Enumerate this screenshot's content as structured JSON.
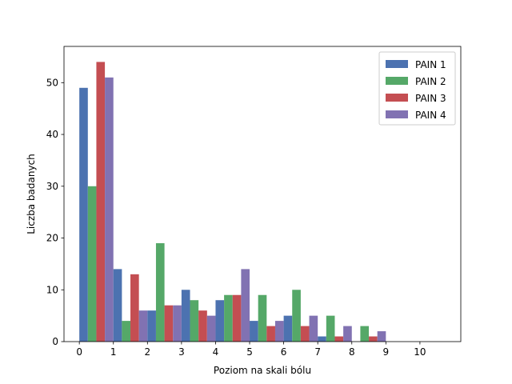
{
  "chart_data": {
    "type": "bar",
    "title": "",
    "xlabel": "Poziom na skali bólu",
    "ylabel": "Liczba badanych",
    "x_ticks": [
      0,
      1,
      2,
      3,
      4,
      5,
      6,
      7,
      8,
      9,
      10
    ],
    "xlim": [
      -0.45,
      11.2
    ],
    "ylim": [
      0,
      57
    ],
    "y_ticks": [
      0,
      10,
      20,
      30,
      40,
      50
    ],
    "grid": false,
    "legend_position": "top-right",
    "bins": [
      {
        "start": 0.0,
        "end": 1.0
      },
      {
        "start": 1.0,
        "end": 2.0
      },
      {
        "start": 2.0,
        "end": 3.0
      },
      {
        "start": 3.0,
        "end": 4.0
      },
      {
        "start": 4.0,
        "end": 5.0
      },
      {
        "start": 5.0,
        "end": 6.0
      },
      {
        "start": 6.0,
        "end": 7.0
      },
      {
        "start": 7.0,
        "end": 8.0
      },
      {
        "start": 8.0,
        "end": 9.0
      },
      {
        "start": 9.0,
        "end": 10.0
      }
    ],
    "series": [
      {
        "name": "PAIN 1",
        "color": "#4c72b0",
        "values": [
          49,
          14,
          6,
          10,
          8,
          4,
          5,
          1,
          0,
          0
        ]
      },
      {
        "name": "PAIN 2",
        "color": "#55a868",
        "values": [
          30,
          4,
          19,
          8,
          9,
          9,
          10,
          5,
          3,
          0
        ]
      },
      {
        "name": "PAIN 3",
        "color": "#c44e52",
        "values": [
          54,
          13,
          7,
          6,
          9,
          3,
          3,
          1,
          1,
          0
        ]
      },
      {
        "name": "PAIN 4",
        "color": "#8172b2",
        "values": [
          51,
          6,
          7,
          5,
          14,
          4,
          5,
          3,
          2,
          0
        ]
      }
    ]
  }
}
